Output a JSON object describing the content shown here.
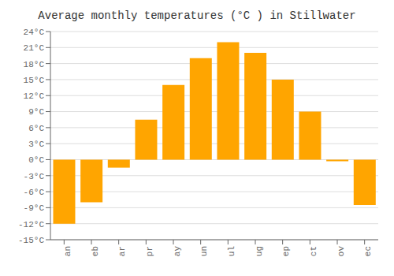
{
  "chart_data": {
    "type": "bar",
    "title": "Average monthly temperatures (°C ) in Stillwater",
    "categories": [
      "an",
      "eb",
      "ar",
      "pr",
      "ay",
      "un",
      "ul",
      "ug",
      "ep",
      "ct",
      "ov",
      "ec"
    ],
    "values": [
      -12,
      -8,
      -1.5,
      7.5,
      14,
      19,
      22,
      20,
      15,
      9,
      -0.3,
      -8.5
    ],
    "color": "#FFA500",
    "ylim": [
      -15,
      24
    ],
    "yticks": [
      {
        "value": -15,
        "label": "-15°C"
      },
      {
        "value": -12,
        "label": "-12°C"
      },
      {
        "value": -9,
        "label": "-9°C"
      },
      {
        "value": -6,
        "label": "-6°C"
      },
      {
        "value": -3,
        "label": "-3°C"
      },
      {
        "value": 0,
        "label": "0°C"
      },
      {
        "value": 3,
        "label": "3°C"
      },
      {
        "value": 6,
        "label": "6°C"
      },
      {
        "value": 9,
        "label": "9°C"
      },
      {
        "value": 12,
        "label": "12°C"
      },
      {
        "value": 15,
        "label": "15°C"
      },
      {
        "value": 18,
        "label": "18°C"
      },
      {
        "value": 21,
        "label": "21°C"
      },
      {
        "value": 24,
        "label": "24°C"
      }
    ],
    "grid": true
  }
}
